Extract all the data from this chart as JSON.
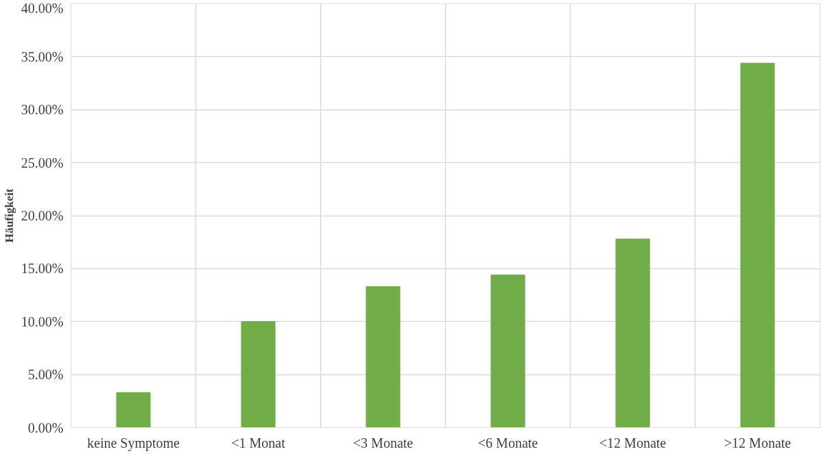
{
  "chart_data": {
    "type": "bar",
    "ylabel": "Häufigkeit",
    "categories": [
      "keine Symptome",
      "<1 Monat",
      "<3 Monate",
      "<6 Monate",
      "<12 Monate",
      ">12 Monate"
    ],
    "values": [
      3.3,
      10.0,
      13.3,
      14.4,
      17.8,
      34.4
    ],
    "color": "#70ad47",
    "ylim": [
      0,
      40
    ],
    "yticks": [
      {
        "value": 0,
        "label": "0.00%"
      },
      {
        "value": 5,
        "label": "5.00%"
      },
      {
        "value": 10,
        "label": "10.00%"
      },
      {
        "value": 15,
        "label": "15.00%"
      },
      {
        "value": 20,
        "label": "20.00%"
      },
      {
        "value": 25,
        "label": "25.00%"
      },
      {
        "value": 30,
        "label": "30.00%"
      },
      {
        "value": 35,
        "label": "35.00%"
      },
      {
        "value": 40,
        "label": "40.00%"
      }
    ],
    "grid": true
  }
}
